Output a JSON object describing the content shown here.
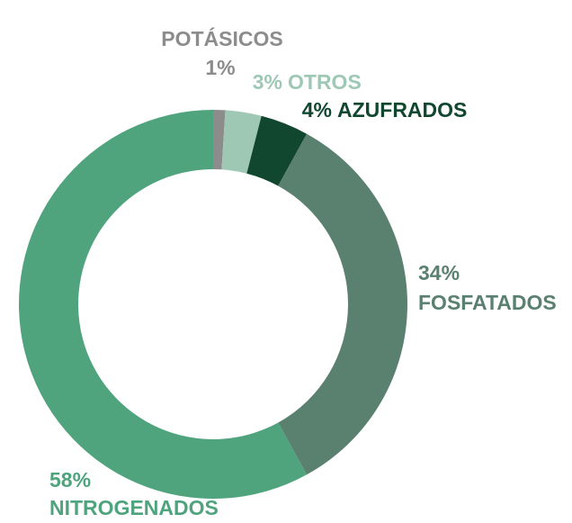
{
  "chart_data": {
    "type": "donut",
    "categories": [
      "POTÁSICOS",
      "OTROS",
      "AZUFRADOS",
      "FOSFATADOS",
      "NITROGENADOS"
    ],
    "values": [
      1,
      3,
      4,
      34,
      58
    ],
    "value_labels": [
      "1%",
      "3%",
      "4%",
      "34%",
      "58%"
    ],
    "colors": [
      "#8c8c8c",
      "#9ec8b4",
      "#11472f",
      "#5a8070",
      "#4fa47e"
    ]
  }
}
